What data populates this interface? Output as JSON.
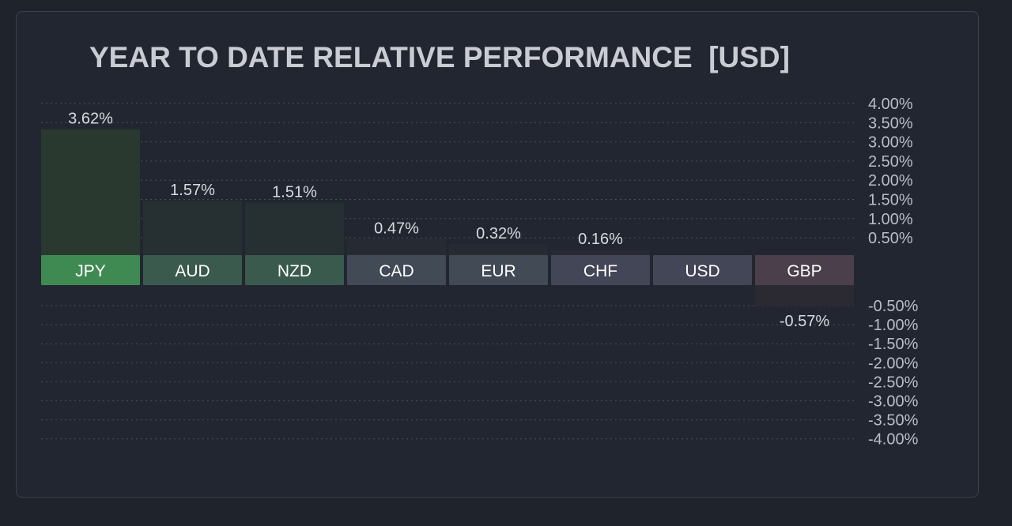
{
  "chart_data": {
    "type": "bar",
    "title": "YEAR TO DATE RELATIVE PERFORMANCE  [USD]",
    "categories": [
      "JPY",
      "AUD",
      "NZD",
      "CAD",
      "EUR",
      "CHF",
      "USD",
      "GBP"
    ],
    "values": [
      3.62,
      1.57,
      1.51,
      0.47,
      0.32,
      0.16,
      0.0,
      -0.57
    ],
    "value_labels": [
      "3.62%",
      "1.57%",
      "1.51%",
      "0.47%",
      "0.32%",
      "0.16%",
      "",
      "-0.57%"
    ],
    "ylim": [
      -4,
      4
    ],
    "yticks_positive": [
      "4.00%",
      "3.50%",
      "3.00%",
      "2.50%",
      "2.00%",
      "1.50%",
      "1.00%",
      "0.50%"
    ],
    "yticks_negative": [
      "-0.50%",
      "-1.00%",
      "-1.50%",
      "-2.00%",
      "-2.50%",
      "-3.00%",
      "-3.50%",
      "-4.00%"
    ],
    "yaxis_position": "right",
    "grid": true,
    "category_colors": [
      "#3f8a52",
      "#395a4c",
      "#395a4c",
      "#414a55",
      "#414a55",
      "#434657",
      "#434657",
      "#4c3f4c"
    ],
    "bar_colors": [
      "#29392f",
      "#262f31",
      "#262f31",
      "#262b33",
      "#262b33",
      "#272934",
      "#272934",
      "#2b2a33"
    ]
  }
}
